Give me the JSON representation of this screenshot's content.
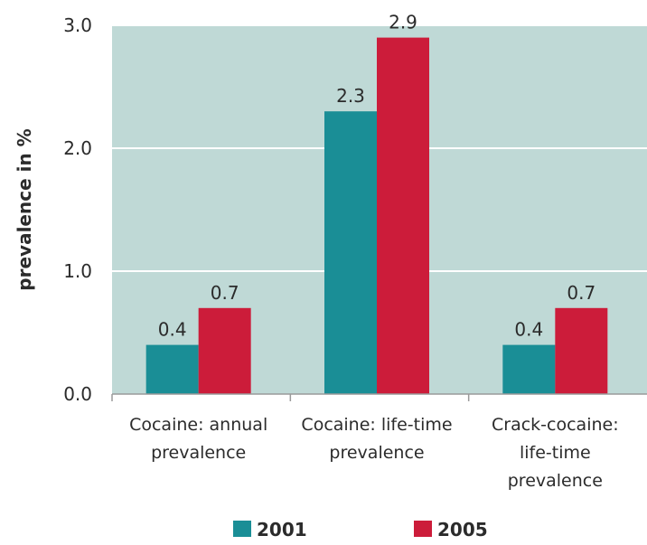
{
  "chart_data": {
    "type": "bar",
    "categories": [
      [
        "Cocaine:  annual",
        "prevalence"
      ],
      [
        "Cocaine: life-time",
        "prevalence"
      ],
      [
        "Crack-cocaine:",
        "life-time",
        "prevalence"
      ]
    ],
    "series": [
      {
        "name": "2001",
        "values": [
          0.4,
          2.3,
          0.4
        ],
        "labels": [
          "0.4",
          "2.3",
          "0.4"
        ],
        "color": "#1a8e96"
      },
      {
        "name": "2005",
        "values": [
          0.7,
          2.9,
          0.7
        ],
        "labels": [
          "0.7",
          "2.9",
          "0.7"
        ],
        "color": "#cc1c3a"
      }
    ],
    "ylabel": "prevalence in %",
    "xlabel": "",
    "ylim": [
      0,
      3.0
    ],
    "yticks": [
      0.0,
      1.0,
      2.0,
      3.0
    ],
    "ytick_labels": [
      "0.0",
      "1.0",
      "2.0",
      "3.0"
    ],
    "plot_background": "#bfd9d6",
    "grid": true,
    "gridline_color": "#ffffff",
    "legend_position": "bottom"
  }
}
